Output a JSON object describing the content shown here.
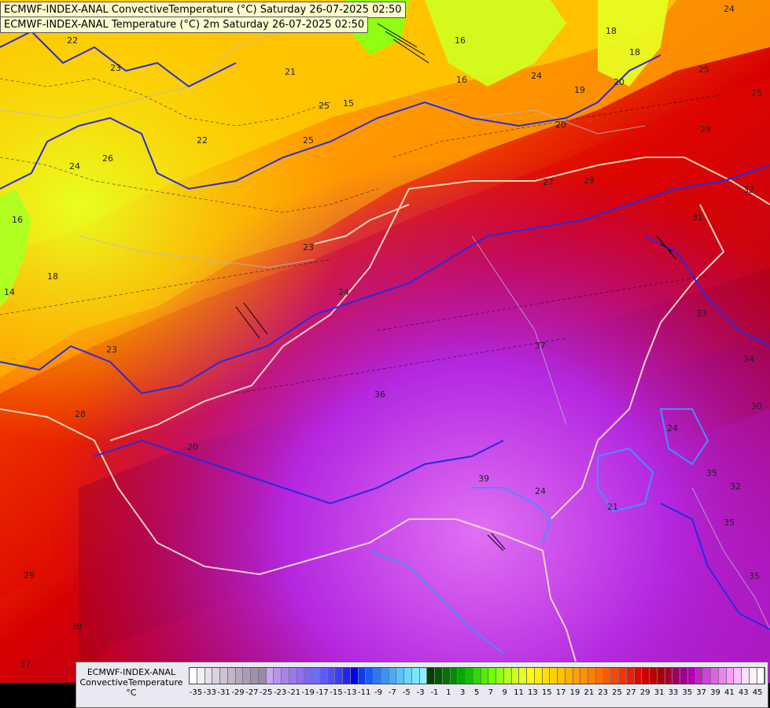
{
  "titles": {
    "line1": "ECMWF-INDEX-ANAL ConvectiveTemperature (°C) Saturday 26-07-2025 02:50",
    "line2": "ECMWF-INDEX-ANAL Temperature (°C) 2m Saturday 26-07-2025 02:50"
  },
  "legend": {
    "source": "ECMWF-INDEX-ANAL",
    "variable": "ConvectiveTemperature",
    "unit": "°C",
    "tick_labels": [
      "-35",
      "-33",
      "-31",
      "-29",
      "-27",
      "-25",
      "-23",
      "-21",
      "-19",
      "-17",
      "-15",
      "-13",
      "-11",
      "-9",
      "-7",
      "-5",
      "-3",
      "-1",
      "1",
      "3",
      "5",
      "7",
      "9",
      "11",
      "13",
      "15",
      "17",
      "19",
      "21",
      "23",
      "25",
      "27",
      "29",
      "31",
      "33",
      "35",
      "37",
      "39",
      "41",
      "43",
      "45"
    ],
    "colors": [
      "#ffffff",
      "#f2eef4",
      "#e6dfe9",
      "#dad0df",
      "#cec2d5",
      "#c2b5cb",
      "#b7a8c2",
      "#ac9cb9",
      "#a18fb0",
      "#9789a8",
      "#c9a6f2",
      "#b894ee",
      "#a783ea",
      "#9a78ee",
      "#8e70f0",
      "#7a66f2",
      "#6d6ef4",
      "#5e5af6",
      "#4f4ff8",
      "#3b3bfa",
      "#2222fc",
      "#0000ee",
      "#0a3cf0",
      "#1a5cf2",
      "#2a78f4",
      "#3a92f6",
      "#4aacf8",
      "#5ac2fa",
      "#6ad6fc",
      "#7ae6fe",
      "#8af0ff",
      "#004000",
      "#005a00",
      "#007400",
      "#008e00",
      "#00a800",
      "#10c000",
      "#30d800",
      "#50ee00",
      "#70ff00",
      "#90ff10",
      "#b0ff20",
      "#d0ff20",
      "#e8ff20",
      "#ffff00",
      "#fff000",
      "#ffe000",
      "#ffd000",
      "#ffc000",
      "#ffb000",
      "#ffa000",
      "#ff9000",
      "#ff8000",
      "#ff6c00",
      "#ff5800",
      "#ff4400",
      "#ff3000",
      "#f01c00",
      "#e00800",
      "#cc0000",
      "#b80000",
      "#a40010",
      "#a00030",
      "#a00060",
      "#a00090",
      "#b000b0",
      "#c020c8",
      "#d040dc",
      "#e060ea",
      "#f080f4",
      "#ff9cff",
      "#ffc0ff",
      "#ffe0ff",
      "#fff0ff",
      "#ffffff"
    ]
  },
  "contour_labels": {
    "convective_temperature": [
      "22",
      "23",
      "21",
      "25",
      "25",
      "26",
      "16",
      "18",
      "14",
      "23",
      "28",
      "29",
      "24",
      "20",
      "18",
      "19",
      "27",
      "29",
      "32",
      "31",
      "34",
      "33",
      "25",
      "25",
      "24",
      "24",
      "37",
      "36",
      "35",
      "39",
      "32",
      "38",
      "30",
      "35",
      "35",
      "37"
    ],
    "temperature_2m": [
      "18",
      "16",
      "16",
      "18",
      "20",
      "29",
      "24",
      "21",
      "20",
      "15",
      "23",
      "24",
      "24",
      "22"
    ]
  }
}
